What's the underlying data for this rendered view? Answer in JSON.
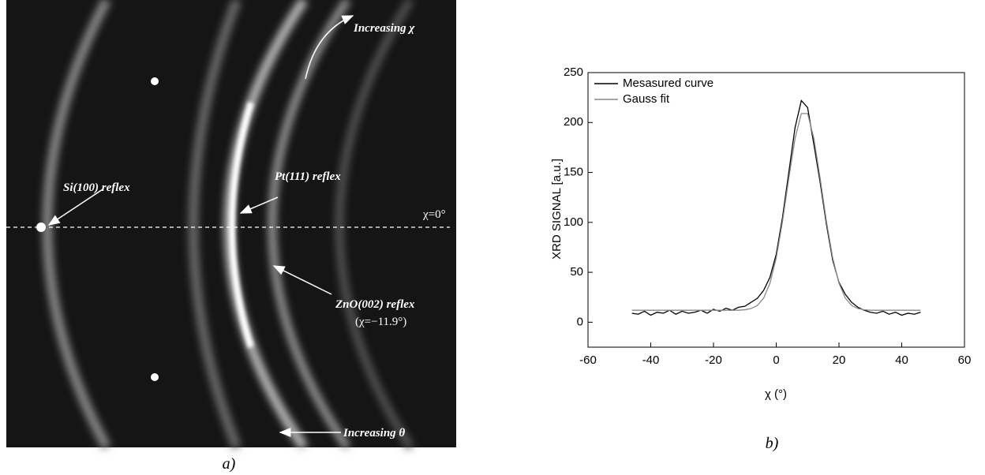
{
  "figure_a": {
    "annotations": [
      "Increasing χ",
      "Si(100) reflex",
      "Pt(111) reflex",
      "χ=0°",
      "ZnO(002) reflex",
      "(χ=−11.9°)",
      "Increasing θ"
    ],
    "panel_label": "a)"
  },
  "chart_data": {
    "type": "line",
    "panel_label": "b)",
    "x_label": "χ (°)",
    "y_label": "XRD SIGNAL [a.u.]",
    "x": [
      -46,
      -44,
      -42,
      -40,
      -38,
      -36,
      -34,
      -32,
      -30,
      -28,
      -26,
      -24,
      -22,
      -20,
      -18,
      -16,
      -14,
      -12,
      -10,
      -8,
      -6,
      -4,
      -2,
      0,
      2,
      4,
      6,
      8,
      10,
      12,
      14,
      16,
      18,
      20,
      22,
      24,
      26,
      28,
      30,
      32,
      34,
      36,
      38,
      40,
      42,
      44,
      46
    ],
    "series": [
      {
        "name": "Mesasured curve",
        "color": "#000000",
        "values": [
          9,
          8,
          11,
          7,
          10,
          9,
          12,
          8,
          11,
          9,
          10,
          12,
          9,
          13,
          11,
          14,
          12,
          15,
          16,
          20,
          24,
          32,
          45,
          68,
          105,
          150,
          195,
          222,
          215,
          178,
          140,
          98,
          62,
          40,
          28,
          20,
          15,
          12,
          10,
          9,
          11,
          8,
          10,
          7,
          9,
          8,
          10
        ]
      },
      {
        "name": "Gauss fit",
        "color": "#888888",
        "values": [
          12,
          12,
          12,
          12,
          12,
          12,
          12,
          12,
          12,
          12,
          12,
          12,
          12,
          12,
          12,
          12,
          12,
          12,
          12.5,
          13.7,
          16.8,
          24.3,
          39.1,
          64.4,
          101,
          144,
          184,
          209,
          209,
          184,
          144,
          101,
          64.4,
          39.1,
          24.3,
          16.8,
          13.7,
          12.5,
          12,
          12,
          12,
          12,
          12,
          12,
          12,
          12,
          12
        ]
      }
    ],
    "xlim": [
      -60,
      60
    ],
    "xticks": [
      -60,
      -40,
      -20,
      0,
      20,
      40,
      60
    ],
    "ylim": [
      -25,
      250
    ],
    "yticks": [
      0,
      50,
      100,
      150,
      200,
      250
    ],
    "grid": false,
    "legend": "upper left"
  }
}
